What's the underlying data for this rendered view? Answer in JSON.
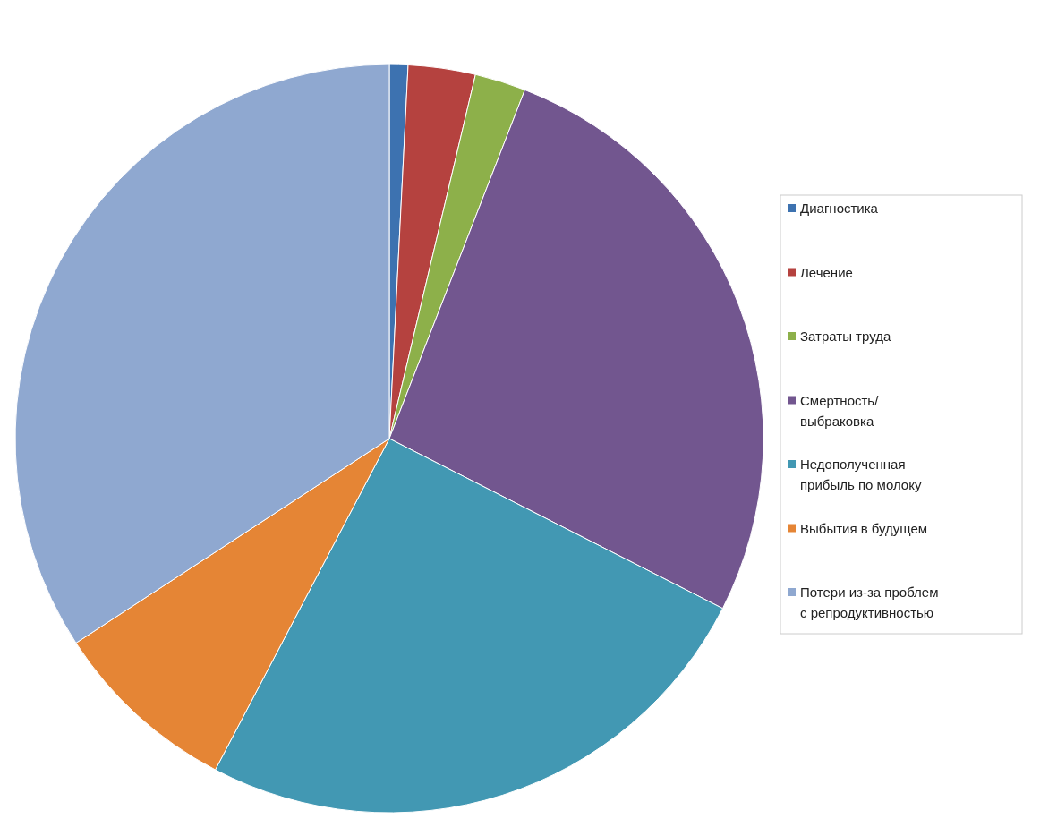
{
  "chart_data": {
    "type": "pie",
    "categories": [
      "Диагностика",
      "Лечение",
      "Затраты труда",
      "Смертность/ выбраковка",
      "Недополученная прибыль по молоку",
      "Выбытия в будущем",
      "Потери из-за проблем с репродуктивностью"
    ],
    "values": [
      0.8,
      2.9,
      2.2,
      26.6,
      25.2,
      8.1,
      34.2
    ],
    "colors": [
      "#3d72b0",
      "#b5423f",
      "#8db04a",
      "#72568f",
      "#4298b3",
      "#e58535",
      "#8fa8d0"
    ],
    "legend": "right"
  }
}
